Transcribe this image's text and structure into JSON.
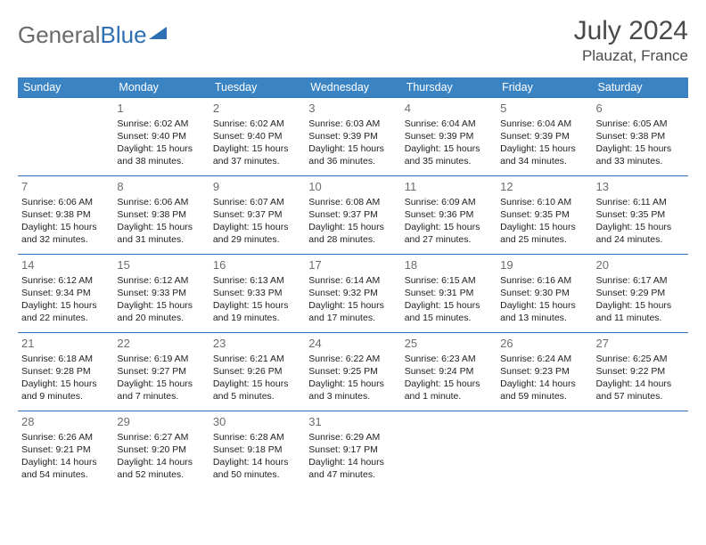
{
  "logo": {
    "part1": "General",
    "part2": "Blue"
  },
  "title": {
    "month": "July 2024",
    "location": "Plauzat, France"
  },
  "colors": {
    "header_bg": "#3b84c4",
    "header_text": "#ffffff",
    "border": "#2f6fb3",
    "daynum": "#6d6d6d",
    "body_text": "#222222",
    "logo_gray": "#6a6a6a",
    "logo_blue": "#2f6fb3",
    "title_color": "#4a4a4a"
  },
  "weekdays": [
    "Sunday",
    "Monday",
    "Tuesday",
    "Wednesday",
    "Thursday",
    "Friday",
    "Saturday"
  ],
  "weeks": [
    [
      null,
      {
        "n": "1",
        "sr": "Sunrise: 6:02 AM",
        "ss": "Sunset: 9:40 PM",
        "d1": "Daylight: 15 hours",
        "d2": "and 38 minutes."
      },
      {
        "n": "2",
        "sr": "Sunrise: 6:02 AM",
        "ss": "Sunset: 9:40 PM",
        "d1": "Daylight: 15 hours",
        "d2": "and 37 minutes."
      },
      {
        "n": "3",
        "sr": "Sunrise: 6:03 AM",
        "ss": "Sunset: 9:39 PM",
        "d1": "Daylight: 15 hours",
        "d2": "and 36 minutes."
      },
      {
        "n": "4",
        "sr": "Sunrise: 6:04 AM",
        "ss": "Sunset: 9:39 PM",
        "d1": "Daylight: 15 hours",
        "d2": "and 35 minutes."
      },
      {
        "n": "5",
        "sr": "Sunrise: 6:04 AM",
        "ss": "Sunset: 9:39 PM",
        "d1": "Daylight: 15 hours",
        "d2": "and 34 minutes."
      },
      {
        "n": "6",
        "sr": "Sunrise: 6:05 AM",
        "ss": "Sunset: 9:38 PM",
        "d1": "Daylight: 15 hours",
        "d2": "and 33 minutes."
      }
    ],
    [
      {
        "n": "7",
        "sr": "Sunrise: 6:06 AM",
        "ss": "Sunset: 9:38 PM",
        "d1": "Daylight: 15 hours",
        "d2": "and 32 minutes."
      },
      {
        "n": "8",
        "sr": "Sunrise: 6:06 AM",
        "ss": "Sunset: 9:38 PM",
        "d1": "Daylight: 15 hours",
        "d2": "and 31 minutes."
      },
      {
        "n": "9",
        "sr": "Sunrise: 6:07 AM",
        "ss": "Sunset: 9:37 PM",
        "d1": "Daylight: 15 hours",
        "d2": "and 29 minutes."
      },
      {
        "n": "10",
        "sr": "Sunrise: 6:08 AM",
        "ss": "Sunset: 9:37 PM",
        "d1": "Daylight: 15 hours",
        "d2": "and 28 minutes."
      },
      {
        "n": "11",
        "sr": "Sunrise: 6:09 AM",
        "ss": "Sunset: 9:36 PM",
        "d1": "Daylight: 15 hours",
        "d2": "and 27 minutes."
      },
      {
        "n": "12",
        "sr": "Sunrise: 6:10 AM",
        "ss": "Sunset: 9:35 PM",
        "d1": "Daylight: 15 hours",
        "d2": "and 25 minutes."
      },
      {
        "n": "13",
        "sr": "Sunrise: 6:11 AM",
        "ss": "Sunset: 9:35 PM",
        "d1": "Daylight: 15 hours",
        "d2": "and 24 minutes."
      }
    ],
    [
      {
        "n": "14",
        "sr": "Sunrise: 6:12 AM",
        "ss": "Sunset: 9:34 PM",
        "d1": "Daylight: 15 hours",
        "d2": "and 22 minutes."
      },
      {
        "n": "15",
        "sr": "Sunrise: 6:12 AM",
        "ss": "Sunset: 9:33 PM",
        "d1": "Daylight: 15 hours",
        "d2": "and 20 minutes."
      },
      {
        "n": "16",
        "sr": "Sunrise: 6:13 AM",
        "ss": "Sunset: 9:33 PM",
        "d1": "Daylight: 15 hours",
        "d2": "and 19 minutes."
      },
      {
        "n": "17",
        "sr": "Sunrise: 6:14 AM",
        "ss": "Sunset: 9:32 PM",
        "d1": "Daylight: 15 hours",
        "d2": "and 17 minutes."
      },
      {
        "n": "18",
        "sr": "Sunrise: 6:15 AM",
        "ss": "Sunset: 9:31 PM",
        "d1": "Daylight: 15 hours",
        "d2": "and 15 minutes."
      },
      {
        "n": "19",
        "sr": "Sunrise: 6:16 AM",
        "ss": "Sunset: 9:30 PM",
        "d1": "Daylight: 15 hours",
        "d2": "and 13 minutes."
      },
      {
        "n": "20",
        "sr": "Sunrise: 6:17 AM",
        "ss": "Sunset: 9:29 PM",
        "d1": "Daylight: 15 hours",
        "d2": "and 11 minutes."
      }
    ],
    [
      {
        "n": "21",
        "sr": "Sunrise: 6:18 AM",
        "ss": "Sunset: 9:28 PM",
        "d1": "Daylight: 15 hours",
        "d2": "and 9 minutes."
      },
      {
        "n": "22",
        "sr": "Sunrise: 6:19 AM",
        "ss": "Sunset: 9:27 PM",
        "d1": "Daylight: 15 hours",
        "d2": "and 7 minutes."
      },
      {
        "n": "23",
        "sr": "Sunrise: 6:21 AM",
        "ss": "Sunset: 9:26 PM",
        "d1": "Daylight: 15 hours",
        "d2": "and 5 minutes."
      },
      {
        "n": "24",
        "sr": "Sunrise: 6:22 AM",
        "ss": "Sunset: 9:25 PM",
        "d1": "Daylight: 15 hours",
        "d2": "and 3 minutes."
      },
      {
        "n": "25",
        "sr": "Sunrise: 6:23 AM",
        "ss": "Sunset: 9:24 PM",
        "d1": "Daylight: 15 hours",
        "d2": "and 1 minute."
      },
      {
        "n": "26",
        "sr": "Sunrise: 6:24 AM",
        "ss": "Sunset: 9:23 PM",
        "d1": "Daylight: 14 hours",
        "d2": "and 59 minutes."
      },
      {
        "n": "27",
        "sr": "Sunrise: 6:25 AM",
        "ss": "Sunset: 9:22 PM",
        "d1": "Daylight: 14 hours",
        "d2": "and 57 minutes."
      }
    ],
    [
      {
        "n": "28",
        "sr": "Sunrise: 6:26 AM",
        "ss": "Sunset: 9:21 PM",
        "d1": "Daylight: 14 hours",
        "d2": "and 54 minutes."
      },
      {
        "n": "29",
        "sr": "Sunrise: 6:27 AM",
        "ss": "Sunset: 9:20 PM",
        "d1": "Daylight: 14 hours",
        "d2": "and 52 minutes."
      },
      {
        "n": "30",
        "sr": "Sunrise: 6:28 AM",
        "ss": "Sunset: 9:18 PM",
        "d1": "Daylight: 14 hours",
        "d2": "and 50 minutes."
      },
      {
        "n": "31",
        "sr": "Sunrise: 6:29 AM",
        "ss": "Sunset: 9:17 PM",
        "d1": "Daylight: 14 hours",
        "d2": "and 47 minutes."
      },
      null,
      null,
      null
    ]
  ]
}
